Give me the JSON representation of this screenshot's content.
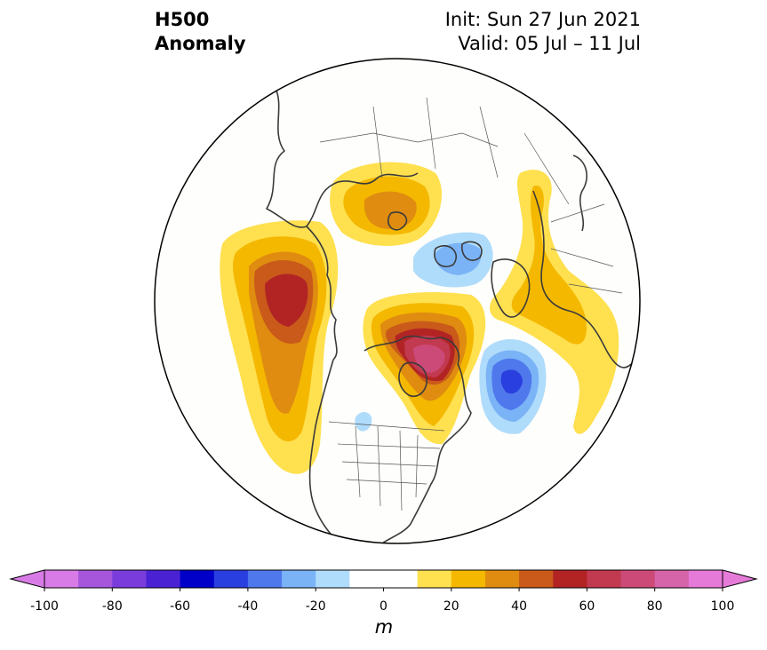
{
  "header": {
    "title_line1": "H500",
    "title_line2": "Anomaly",
    "init": "Init: Sun 27 Jun 2021",
    "valid": "Valid: 05 Jul – 11 Jul"
  },
  "map": {
    "projection": "north-polar-stereographic",
    "background": "#fefefc",
    "coastline_color": "#3b3b3b"
  },
  "colorbar": {
    "unit": "m",
    "min": -100,
    "max": 100,
    "ticks": [
      "-100",
      "-80",
      "-60",
      "-40",
      "-20",
      "0",
      "20",
      "40",
      "60",
      "80",
      "100"
    ],
    "colors": [
      "#d97be6",
      "#a556db",
      "#7a3ddc",
      "#4a22d4",
      "#0000c8",
      "#2a3fdf",
      "#4f78ec",
      "#7ab3f6",
      "#b0dcfb",
      "#ffffff",
      "#ffffff",
      "#ffe04f",
      "#f4b800",
      "#df8c10",
      "#c95a1a",
      "#b22424",
      "#c23a50",
      "#cc4a78",
      "#d664a8",
      "#e67ad8"
    ],
    "extend_low_color": "#d97be6",
    "extend_high_color": "#e67ad8"
  }
}
